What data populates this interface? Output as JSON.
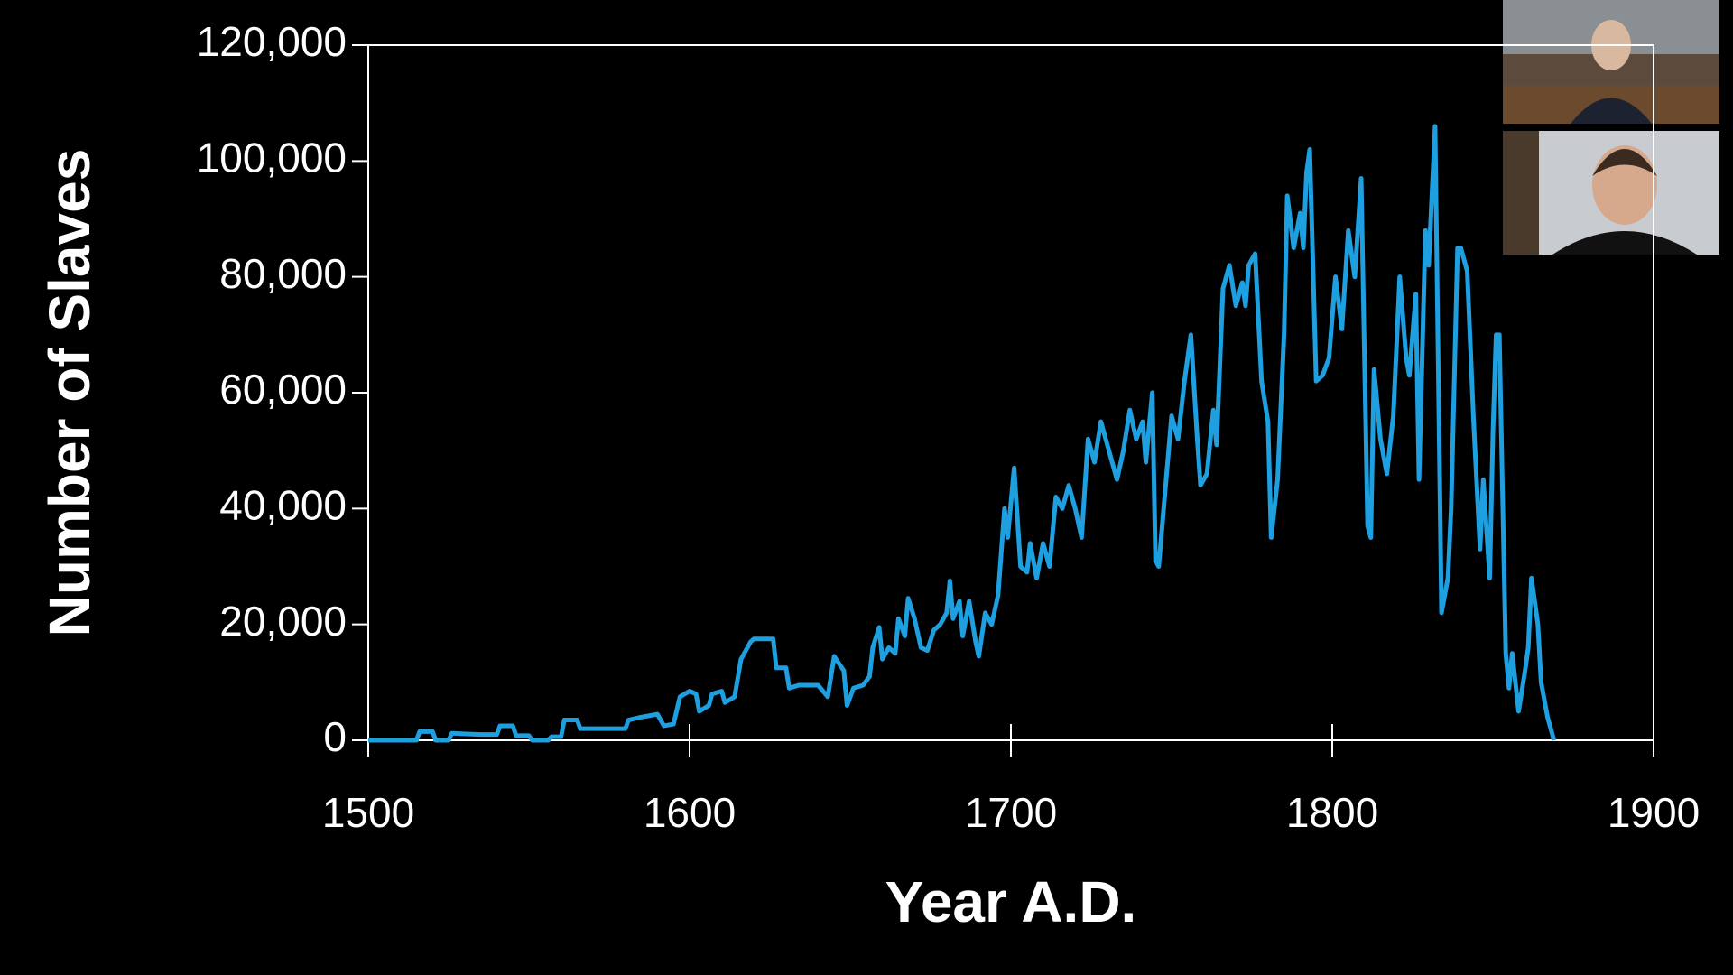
{
  "chart_data": {
    "type": "line",
    "x_label": "Year A.D.",
    "y_label": "Number of Slaves",
    "color": "#1e9fe0",
    "grid": false,
    "xlim": [
      1500,
      1900
    ],
    "xticks": [
      1500,
      1600,
      1700,
      1800,
      1900
    ],
    "ylim": [
      0,
      120000
    ],
    "yticks": [
      0,
      {
        "value": 20000,
        "label": "20,000"
      },
      {
        "value": 40000,
        "label": "40,000"
      },
      {
        "value": 60000,
        "label": "60,000"
      },
      {
        "value": 80000,
        "label": "80,000"
      },
      {
        "value": 100000,
        "label": "100,000"
      },
      {
        "value": 120000,
        "label": "120,000"
      }
    ],
    "x": [
      1500,
      1515,
      1516,
      1520,
      1521,
      1525,
      1526,
      1535,
      1540,
      1541,
      1545,
      1546,
      1550,
      1551,
      1556,
      1557,
      1560,
      1561,
      1565,
      1566,
      1580,
      1581,
      1585,
      1590,
      1592,
      1595,
      1597,
      1600,
      1602,
      1603,
      1606,
      1607,
      1610,
      1611,
      1614,
      1616,
      1619,
      1620,
      1626,
      1627,
      1630,
      1631,
      1634,
      1640,
      1643,
      1645,
      1648,
      1649,
      1651,
      1654,
      1656,
      1657,
      1659,
      1660,
      1662,
      1664,
      1665,
      1667,
      1668,
      1670,
      1672,
      1674,
      1676,
      1678,
      1680,
      1681,
      1682,
      1684,
      1685,
      1687,
      1689,
      1690,
      1692,
      1694,
      1696,
      1698,
      1699,
      1701,
      1703,
      1705,
      1706,
      1708,
      1710,
      1712,
      1714,
      1716,
      1718,
      1720,
      1722,
      1724,
      1726,
      1728,
      1731,
      1733,
      1735,
      1737,
      1739,
      1741,
      1742,
      1744,
      1745,
      1746,
      1748,
      1750,
      1752,
      1754,
      1756,
      1758,
      1759,
      1761,
      1763,
      1764,
      1766,
      1768,
      1770,
      1772,
      1773,
      1774,
      1776,
      1778,
      1780,
      1781,
      1783,
      1785,
      1786,
      1788,
      1790,
      1791,
      1792,
      1793,
      1795,
      1797,
      1799,
      1801,
      1803,
      1805,
      1807,
      1809,
      1811,
      1812,
      1813,
      1815,
      1817,
      1819,
      1821,
      1823,
      1824,
      1826,
      1827,
      1829,
      1830,
      1832,
      1834,
      1836,
      1837,
      1839,
      1840,
      1842,
      1844,
      1846,
      1847,
      1849,
      1850,
      1851,
      1852,
      1854,
      1855,
      1856,
      1858,
      1860,
      1861,
      1862,
      1864,
      1865,
      1867,
      1869
    ],
    "values": [
      0,
      0,
      1500,
      1500,
      0,
      0,
      1200,
      1000,
      1000,
      2500,
      2500,
      800,
      800,
      0,
      0,
      600,
      600,
      3500,
      3500,
      2000,
      2000,
      3500,
      4000,
      4500,
      2500,
      2800,
      7500,
      8500,
      8000,
      5000,
      6000,
      8000,
      8500,
      6500,
      7500,
      14000,
      17000,
      17500,
      17500,
      12500,
      12500,
      9000,
      9500,
      9500,
      7500,
      14500,
      12000,
      6000,
      9000,
      9500,
      11000,
      16000,
      19500,
      14000,
      16000,
      15000,
      21000,
      18000,
      24500,
      21000,
      16000,
      15500,
      19000,
      20000,
      22000,
      27500,
      21000,
      24000,
      18000,
      24000,
      17000,
      14500,
      22000,
      20000,
      25000,
      40000,
      35000,
      47000,
      30000,
      29000,
      34000,
      28000,
      34000,
      30000,
      42000,
      40000,
      44000,
      40000,
      35000,
      52000,
      48000,
      55000,
      49000,
      45000,
      50000,
      57000,
      52000,
      55000,
      48000,
      60000,
      31000,
      30000,
      43000,
      56000,
      52000,
      62000,
      70000,
      52000,
      44000,
      46000,
      57000,
      51000,
      78000,
      82000,
      75000,
      79000,
      75000,
      82000,
      84000,
      62000,
      55000,
      35000,
      45000,
      70000,
      94000,
      85000,
      91000,
      85000,
      98000,
      102000,
      62000,
      63000,
      66000,
      80000,
      71000,
      88000,
      80000,
      97000,
      37000,
      35000,
      64000,
      52000,
      46000,
      56000,
      80000,
      66000,
      63000,
      77000,
      45000,
      88000,
      82000,
      106000,
      22000,
      28000,
      40000,
      85000,
      85000,
      81000,
      55000,
      33000,
      45000,
      28000,
      53000,
      70000,
      70000,
      15000,
      9000,
      15000,
      5000,
      12000,
      16000,
      28000,
      20000,
      10000,
      4000,
      0
    ]
  }
}
